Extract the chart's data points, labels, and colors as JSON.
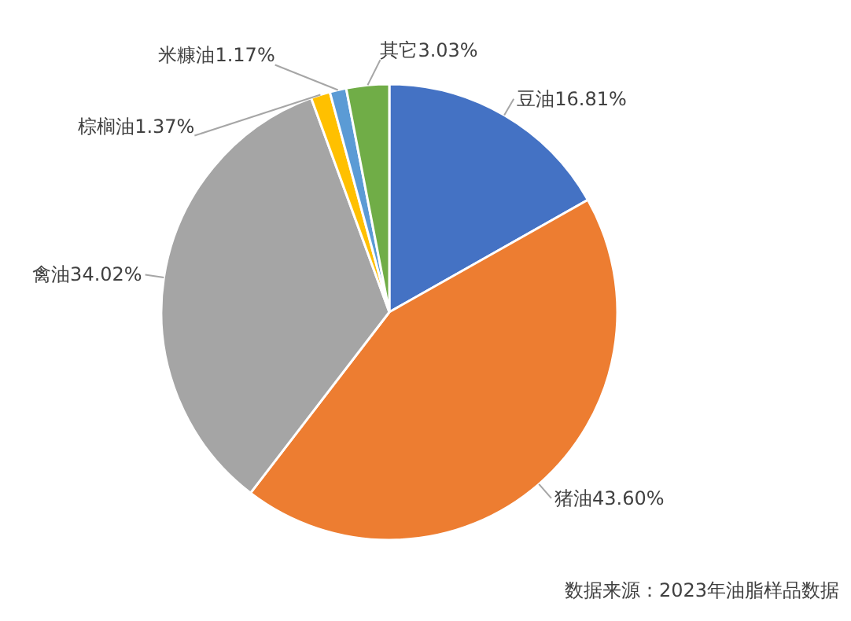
{
  "chart_data": {
    "type": "pie",
    "categories": [
      "豆油",
      "猪油",
      "禽油",
      "棕榈油",
      "米糠油",
      "其它"
    ],
    "values": [
      16.81,
      43.6,
      34.02,
      1.37,
      1.17,
      3.03
    ],
    "value_labels": [
      "16.81%",
      "43.60%",
      "34.02%",
      "1.37%",
      "1.17%",
      "3.03%"
    ],
    "colors": [
      "#4472c4",
      "#ed7d31",
      "#a5a5a5",
      "#ffc000",
      "#5b9bd5",
      "#70ad47"
    ],
    "annotations": [
      "数据来源：2023年油脂样品数据"
    ]
  }
}
